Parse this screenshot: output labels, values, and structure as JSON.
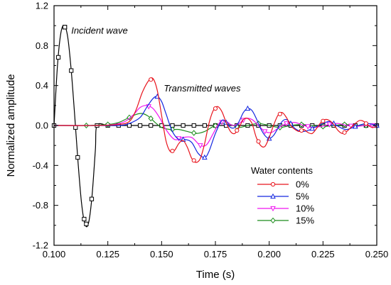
{
  "chart_data": {
    "type": "line",
    "xlabel": "Time (s)",
    "ylabel": "Normalized amplitude",
    "xlim": [
      0.1,
      0.25
    ],
    "ylim": [
      -1.2,
      1.2
    ],
    "x_ticks": [
      0.1,
      0.125,
      0.15,
      0.175,
      0.2,
      0.225,
      0.25
    ],
    "x_tick_labels": [
      "0.100",
      "0.125",
      "0.150",
      "0.175",
      "0.200",
      "0.225",
      "0.250"
    ],
    "y_ticks": [
      1.2,
      0.8,
      0.4,
      0.0,
      -0.4,
      -0.8,
      -1.2
    ],
    "y_tick_labels": [
      "1.2",
      "0.8",
      "0.4",
      "0.0",
      "-0.4",
      "-0.8",
      "-1.2"
    ],
    "grid": false,
    "legend": {
      "title": "Water contents",
      "position": "bottom-right"
    },
    "annotations": [
      {
        "text": "Incident wave",
        "x": 0.108,
        "y": 0.92
      },
      {
        "text": "Transmitted waves",
        "x": 0.151,
        "y": 0.34
      }
    ],
    "series": [
      {
        "name": "Incident",
        "color": "#000000",
        "marker": "square",
        "in_legend": false,
        "x": [
          0.1,
          0.1016,
          0.1032,
          0.1048,
          0.1064,
          0.108,
          0.1096,
          0.1112,
          0.1128,
          0.1144,
          0.116,
          0.1176,
          0.1192,
          0.12,
          0.125,
          0.13,
          0.135,
          0.14,
          0.145,
          0.15,
          0.155,
          0.16,
          0.165,
          0.17,
          0.175,
          0.18,
          0.185,
          0.19,
          0.195,
          0.2,
          0.205,
          0.21,
          0.215,
          0.22,
          0.225,
          0.23,
          0.235,
          0.24,
          0.245,
          0.25
        ],
        "y": [
          0.0,
          0.6,
          0.93,
          1.0,
          0.88,
          0.55,
          0.1,
          -0.38,
          -0.78,
          -0.99,
          -0.98,
          -0.72,
          -0.25,
          0.0,
          0.0,
          0.0,
          0.0,
          0.0,
          0.0,
          0.0,
          0.0,
          0.0,
          0.0,
          0.0,
          0.0,
          0.0,
          0.0,
          0.0,
          0.0,
          0.0,
          0.0,
          0.0,
          0.0,
          0.0,
          0.0,
          0.0,
          0.0,
          0.0,
          0.0,
          0.0
        ],
        "marker_x": [
          0.102,
          0.105,
          0.108,
          0.111,
          0.114,
          0.1175,
          0.1,
          0.105,
          0.11,
          0.115,
          0.12,
          0.125,
          0.13,
          0.135,
          0.14,
          0.145,
          0.15,
          0.155,
          0.16,
          0.165,
          0.17,
          0.175,
          0.18,
          0.185,
          0.19,
          0.195,
          0.2,
          0.205,
          0.21,
          0.215,
          0.22,
          0.225,
          0.23,
          0.235,
          0.24,
          0.245,
          0.25
        ]
      },
      {
        "name": "0%",
        "color": "#e8141c",
        "marker": "circle",
        "in_legend": true,
        "x": [
          0.1,
          0.12,
          0.13,
          0.135,
          0.138,
          0.141,
          0.144,
          0.146,
          0.148,
          0.15,
          0.152,
          0.154,
          0.156,
          0.158,
          0.16,
          0.162,
          0.164,
          0.166,
          0.168,
          0.17,
          0.172,
          0.174,
          0.176,
          0.178,
          0.18,
          0.182,
          0.184,
          0.186,
          0.188,
          0.19,
          0.192,
          0.194,
          0.196,
          0.198,
          0.2,
          0.202,
          0.204,
          0.206,
          0.208,
          0.21,
          0.212,
          0.214,
          0.216,
          0.218,
          0.22,
          0.222,
          0.224,
          0.226,
          0.228,
          0.23,
          0.232,
          0.234,
          0.236,
          0.238,
          0.24,
          0.242,
          0.244,
          0.246,
          0.248,
          0.25
        ],
        "y": [
          0.0,
          0.0,
          0.01,
          0.04,
          0.15,
          0.33,
          0.45,
          0.47,
          0.35,
          0.1,
          -0.15,
          -0.26,
          -0.25,
          -0.18,
          -0.15,
          -0.22,
          -0.33,
          -0.37,
          -0.33,
          -0.18,
          0.02,
          0.15,
          0.19,
          0.14,
          0.03,
          -0.06,
          -0.08,
          -0.02,
          0.06,
          0.07,
          0.02,
          -0.12,
          -0.2,
          -0.21,
          -0.12,
          0.0,
          0.1,
          0.13,
          0.08,
          0.0,
          -0.04,
          -0.06,
          -0.04,
          -0.07,
          -0.08,
          -0.03,
          0.03,
          0.06,
          0.05,
          0.01,
          -0.05,
          -0.08,
          -0.06,
          -0.02,
          0.02,
          0.05,
          0.04,
          0.0,
          -0.02,
          -0.01
        ],
        "marker_x": [
          0.145,
          0.155,
          0.165,
          0.175,
          0.185,
          0.195,
          0.205,
          0.215,
          0.225,
          0.235,
          0.245
        ]
      },
      {
        "name": "5%",
        "color": "#1428e0",
        "marker": "triangle",
        "in_legend": true,
        "x": [
          0.1,
          0.12,
          0.13,
          0.135,
          0.14,
          0.143,
          0.146,
          0.148,
          0.15,
          0.152,
          0.155,
          0.158,
          0.161,
          0.164,
          0.167,
          0.17,
          0.172,
          0.175,
          0.178,
          0.18,
          0.182,
          0.184,
          0.186,
          0.188,
          0.19,
          0.192,
          0.194,
          0.196,
          0.198,
          0.2,
          0.202,
          0.204,
          0.206,
          0.208,
          0.21,
          0.212,
          0.215,
          0.218,
          0.22,
          0.222,
          0.224,
          0.226,
          0.228,
          0.23,
          0.233,
          0.236,
          0.24,
          0.243,
          0.246,
          0.25
        ],
        "y": [
          0.0,
          0.0,
          0.0,
          0.02,
          0.08,
          0.18,
          0.27,
          0.29,
          0.24,
          0.12,
          -0.06,
          -0.14,
          -0.14,
          -0.17,
          -0.28,
          -0.32,
          -0.26,
          -0.08,
          0.05,
          0.03,
          -0.02,
          -0.02,
          0.04,
          0.13,
          0.17,
          0.15,
          0.07,
          -0.03,
          -0.1,
          -0.13,
          -0.1,
          -0.03,
          0.04,
          0.06,
          0.02,
          -0.03,
          -0.06,
          -0.05,
          -0.03,
          -0.01,
          0.01,
          0.03,
          0.04,
          0.02,
          -0.02,
          -0.04,
          -0.01,
          0.01,
          0.02,
          0.0
        ],
        "marker_x": [
          0.148,
          0.16,
          0.17,
          0.18,
          0.19,
          0.2,
          0.21,
          0.22,
          0.23,
          0.24,
          0.25
        ]
      },
      {
        "name": "10%",
        "color": "#f014f0",
        "marker": "triangle-down",
        "in_legend": true,
        "x": [
          0.1,
          0.12,
          0.128,
          0.133,
          0.137,
          0.14,
          0.143,
          0.146,
          0.149,
          0.152,
          0.156,
          0.16,
          0.164,
          0.168,
          0.171,
          0.174,
          0.177,
          0.18,
          0.183,
          0.186,
          0.189,
          0.192,
          0.195,
          0.198,
          0.201,
          0.204,
          0.208,
          0.212,
          0.216,
          0.22,
          0.224,
          0.228,
          0.232,
          0.236,
          0.24,
          0.245,
          0.25
        ],
        "y": [
          0.0,
          0.0,
          0.01,
          0.04,
          0.11,
          0.18,
          0.2,
          0.17,
          0.08,
          -0.04,
          -0.14,
          -0.12,
          -0.12,
          -0.2,
          -0.19,
          -0.08,
          0.03,
          0.04,
          0.0,
          0.02,
          0.07,
          0.06,
          0.0,
          -0.06,
          -0.07,
          -0.03,
          0.02,
          0.03,
          0.0,
          -0.02,
          -0.01,
          0.01,
          0.02,
          0.0,
          -0.01,
          0.0,
          0.0
        ],
        "marker_x": [
          0.144,
          0.158,
          0.168,
          0.178,
          0.188,
          0.198,
          0.208,
          0.218,
          0.228,
          0.238,
          0.248
        ]
      },
      {
        "name": "15%",
        "color": "#1c8c1c",
        "marker": "diamond",
        "in_legend": true,
        "x": [
          0.1,
          0.115,
          0.125,
          0.13,
          0.134,
          0.138,
          0.141,
          0.144,
          0.147,
          0.15,
          0.154,
          0.158,
          0.162,
          0.166,
          0.17,
          0.174,
          0.178,
          0.182,
          0.186,
          0.19,
          0.195,
          0.2,
          0.205,
          0.21,
          0.215,
          0.22,
          0.225,
          0.23,
          0.235,
          0.24,
          0.245,
          0.25
        ],
        "y": [
          0.0,
          0.0,
          0.01,
          0.03,
          0.07,
          0.11,
          0.12,
          0.09,
          0.03,
          -0.02,
          -0.04,
          -0.04,
          -0.06,
          -0.08,
          -0.06,
          -0.01,
          0.02,
          0.01,
          -0.02,
          0.0,
          0.02,
          0.0,
          -0.02,
          0.0,
          0.01,
          0.0,
          -0.01,
          0.0,
          0.01,
          0.0,
          0.0,
          0.0
        ],
        "marker_x": [
          0.115,
          0.125,
          0.135,
          0.145,
          0.155,
          0.165,
          0.175,
          0.185,
          0.195,
          0.205,
          0.215,
          0.225,
          0.235,
          0.245
        ]
      }
    ]
  }
}
